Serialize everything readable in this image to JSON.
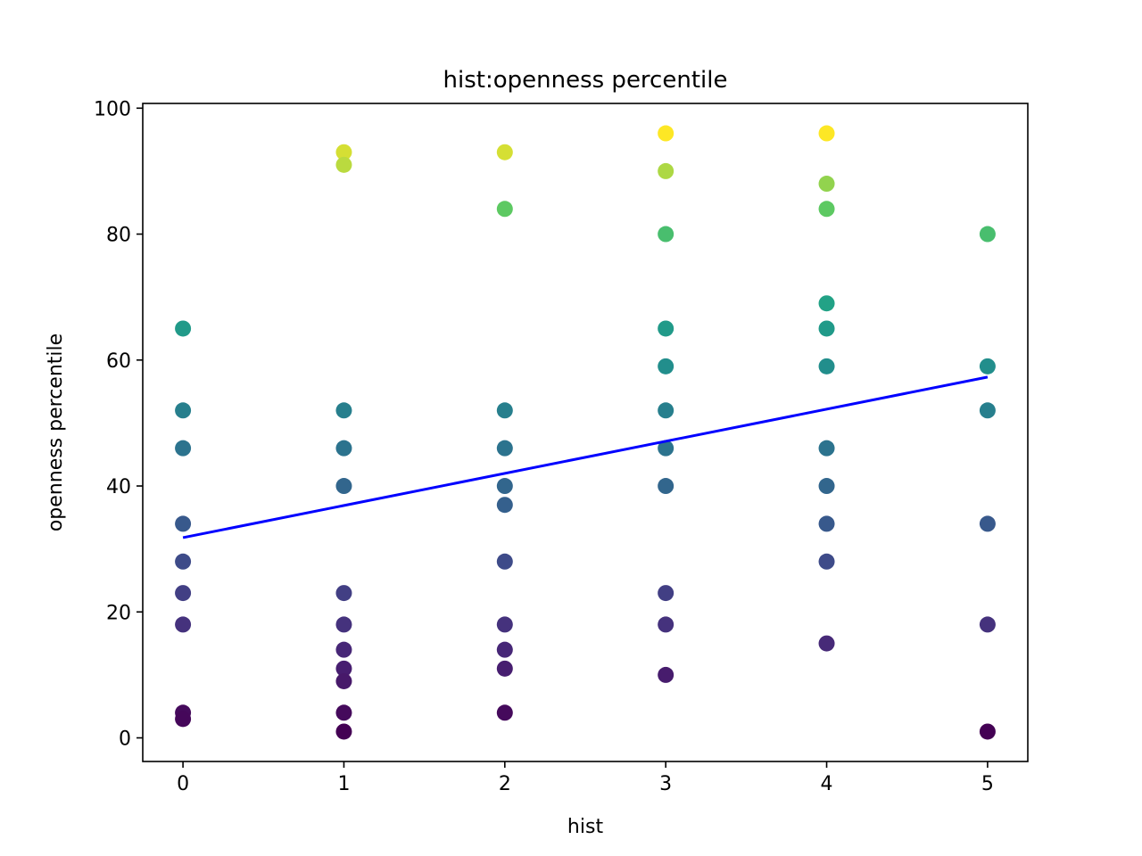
{
  "chart_data": {
    "type": "scatter",
    "title": "hist:openness percentile",
    "xlabel": "hist",
    "ylabel": "openness percentile",
    "xlim": [
      -0.25,
      5.25
    ],
    "ylim": [
      -3.75,
      100.75
    ],
    "xticks": [
      0,
      1,
      2,
      3,
      4,
      5
    ],
    "yticks": [
      0,
      20,
      40,
      60,
      80,
      100
    ],
    "xtick_labels": [
      "0",
      "1",
      "2",
      "3",
      "4",
      "5"
    ],
    "ytick_labels": [
      "0",
      "20",
      "40",
      "60",
      "80",
      "100"
    ],
    "grid": false,
    "legend": "none",
    "colormap": "viridis",
    "color_by": "y",
    "points": [
      {
        "x": 0,
        "y": 65
      },
      {
        "x": 0,
        "y": 52
      },
      {
        "x": 0,
        "y": 46
      },
      {
        "x": 0,
        "y": 34
      },
      {
        "x": 0,
        "y": 28
      },
      {
        "x": 0,
        "y": 23
      },
      {
        "x": 0,
        "y": 18
      },
      {
        "x": 0,
        "y": 4
      },
      {
        "x": 0,
        "y": 3
      },
      {
        "x": 1,
        "y": 93
      },
      {
        "x": 1,
        "y": 91
      },
      {
        "x": 1,
        "y": 52
      },
      {
        "x": 1,
        "y": 46
      },
      {
        "x": 1,
        "y": 40
      },
      {
        "x": 1,
        "y": 23
      },
      {
        "x": 1,
        "y": 18
      },
      {
        "x": 1,
        "y": 14
      },
      {
        "x": 1,
        "y": 11
      },
      {
        "x": 1,
        "y": 9
      },
      {
        "x": 1,
        "y": 4
      },
      {
        "x": 1,
        "y": 1
      },
      {
        "x": 2,
        "y": 93
      },
      {
        "x": 2,
        "y": 84
      },
      {
        "x": 2,
        "y": 52
      },
      {
        "x": 2,
        "y": 46
      },
      {
        "x": 2,
        "y": 40
      },
      {
        "x": 2,
        "y": 37
      },
      {
        "x": 2,
        "y": 28
      },
      {
        "x": 2,
        "y": 18
      },
      {
        "x": 2,
        "y": 14
      },
      {
        "x": 2,
        "y": 11
      },
      {
        "x": 2,
        "y": 4
      },
      {
        "x": 3,
        "y": 96
      },
      {
        "x": 3,
        "y": 90
      },
      {
        "x": 3,
        "y": 80
      },
      {
        "x": 3,
        "y": 65
      },
      {
        "x": 3,
        "y": 59
      },
      {
        "x": 3,
        "y": 52
      },
      {
        "x": 3,
        "y": 46
      },
      {
        "x": 3,
        "y": 40
      },
      {
        "x": 3,
        "y": 23
      },
      {
        "x": 3,
        "y": 18
      },
      {
        "x": 3,
        "y": 10
      },
      {
        "x": 4,
        "y": 96
      },
      {
        "x": 4,
        "y": 88
      },
      {
        "x": 4,
        "y": 84
      },
      {
        "x": 4,
        "y": 69
      },
      {
        "x": 4,
        "y": 65
      },
      {
        "x": 4,
        "y": 59
      },
      {
        "x": 4,
        "y": 46
      },
      {
        "x": 4,
        "y": 40
      },
      {
        "x": 4,
        "y": 34
      },
      {
        "x": 4,
        "y": 28
      },
      {
        "x": 4,
        "y": 15
      },
      {
        "x": 5,
        "y": 80
      },
      {
        "x": 5,
        "y": 59
      },
      {
        "x": 5,
        "y": 52
      },
      {
        "x": 5,
        "y": 34
      },
      {
        "x": 5,
        "y": 18
      },
      {
        "x": 5,
        "y": 1
      }
    ],
    "trend_line": {
      "type": "linear",
      "x": [
        0,
        5
      ],
      "y": [
        31.8,
        57.3
      ],
      "color": "#0000ff"
    }
  }
}
